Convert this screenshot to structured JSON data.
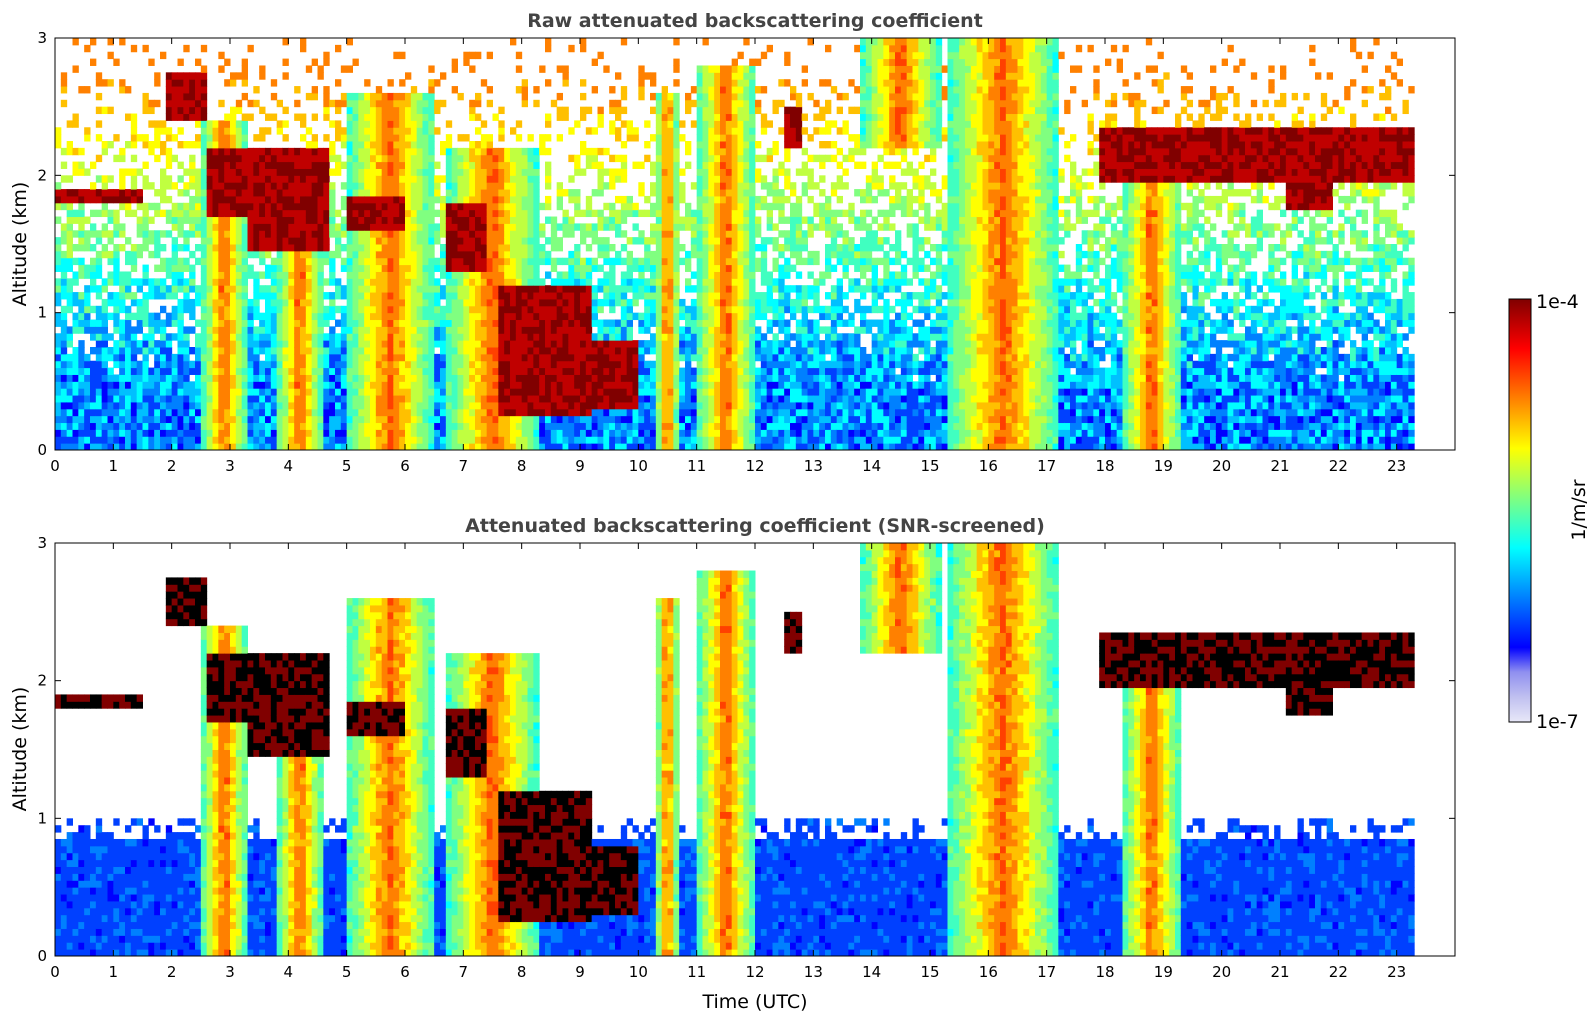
{
  "chart_data": [
    {
      "type": "heatmap",
      "title": "Raw attenuated backscattering coefficient",
      "xlabel": "",
      "ylabel": "Altitude (km)",
      "xlim": [
        0,
        24
      ],
      "ylim": [
        0,
        3
      ],
      "xticks": [
        "0",
        "1",
        "2",
        "3",
        "4",
        "5",
        "6",
        "7",
        "8",
        "9",
        "10",
        "11",
        "12",
        "13",
        "14",
        "15",
        "16",
        "17",
        "18",
        "19",
        "20",
        "21",
        "22",
        "23"
      ],
      "yticks": [
        "0",
        "1",
        "2",
        "3"
      ],
      "data_extent_hours": [
        0,
        23.3
      ],
      "colorscale": "log",
      "zlim": [
        1e-07,
        0.0001
      ],
      "cloud_layers": [
        {
          "t": [
            0.0,
            1.5
          ],
          "alt": [
            1.8,
            1.9
          ]
        },
        {
          "t": [
            1.9,
            2.6
          ],
          "alt": [
            2.4,
            2.75
          ]
        },
        {
          "t": [
            2.6,
            3.3
          ],
          "alt": [
            1.7,
            2.2
          ]
        },
        {
          "t": [
            3.3,
            4.7
          ],
          "alt": [
            1.45,
            2.2
          ]
        },
        {
          "t": [
            5.0,
            6.0
          ],
          "alt": [
            1.6,
            1.85
          ]
        },
        {
          "t": [
            6.7,
            7.4
          ],
          "alt": [
            1.3,
            1.8
          ]
        },
        {
          "t": [
            7.6,
            9.2
          ],
          "alt": [
            0.25,
            1.2
          ]
        },
        {
          "t": [
            9.0,
            10.0
          ],
          "alt": [
            0.3,
            0.8
          ]
        },
        {
          "t": [
            12.5,
            12.8
          ],
          "alt": [
            2.2,
            2.5
          ]
        },
        {
          "t": [
            17.9,
            23.3
          ],
          "alt": [
            1.95,
            2.35
          ]
        },
        {
          "t": [
            21.1,
            21.9
          ],
          "alt": [
            1.75,
            1.95
          ]
        }
      ],
      "aerosol_plumes": [
        {
          "t": [
            2.5,
            3.3
          ],
          "alt": [
            0,
            2.4
          ]
        },
        {
          "t": [
            3.8,
            4.6
          ],
          "alt": [
            0,
            2.1
          ]
        },
        {
          "t": [
            5.0,
            6.5
          ],
          "alt": [
            0,
            2.6
          ]
        },
        {
          "t": [
            6.7,
            8.3
          ],
          "alt": [
            0,
            2.2
          ]
        },
        {
          "t": [
            10.3,
            10.7
          ],
          "alt": [
            0,
            2.6
          ]
        },
        {
          "t": [
            11.0,
            12.0
          ],
          "alt": [
            0,
            2.8
          ]
        },
        {
          "t": [
            13.8,
            15.2
          ],
          "alt": [
            2.2,
            3.0
          ]
        },
        {
          "t": [
            15.3,
            17.2
          ],
          "alt": [
            0,
            3.0
          ]
        },
        {
          "t": [
            18.3,
            19.3
          ],
          "alt": [
            0,
            2.0
          ]
        }
      ]
    },
    {
      "type": "heatmap",
      "title": "Attenuated backscattering coefficient (SNR-screened)",
      "xlabel": "Time (UTC)",
      "ylabel": "Altitude (km)",
      "xlim": [
        0,
        24
      ],
      "ylim": [
        0,
        3
      ],
      "xticks": [
        "0",
        "1",
        "2",
        "3",
        "4",
        "5",
        "6",
        "7",
        "8",
        "9",
        "10",
        "11",
        "12",
        "13",
        "14",
        "15",
        "16",
        "17",
        "18",
        "19",
        "20",
        "21",
        "22",
        "23"
      ],
      "yticks": [
        "0",
        "1",
        "2",
        "3"
      ],
      "data_extent_hours": [
        0,
        23.3
      ],
      "colorscale": "log",
      "zlim": [
        1e-07,
        0.0001
      ]
    }
  ],
  "colorbar": {
    "label": "1/m/sr",
    "max_label": "1e-4",
    "min_label": "1e-7",
    "colors": [
      "#e8e8f8",
      "#c0c0f0",
      "#9090f0",
      "#0000ff",
      "#0040ff",
      "#0080ff",
      "#00c0ff",
      "#00ffff",
      "#40ffc0",
      "#80ff80",
      "#c0ff40",
      "#ffff00",
      "#ffc000",
      "#ff8000",
      "#ff4000",
      "#ff0000",
      "#c00000",
      "#800000"
    ]
  }
}
